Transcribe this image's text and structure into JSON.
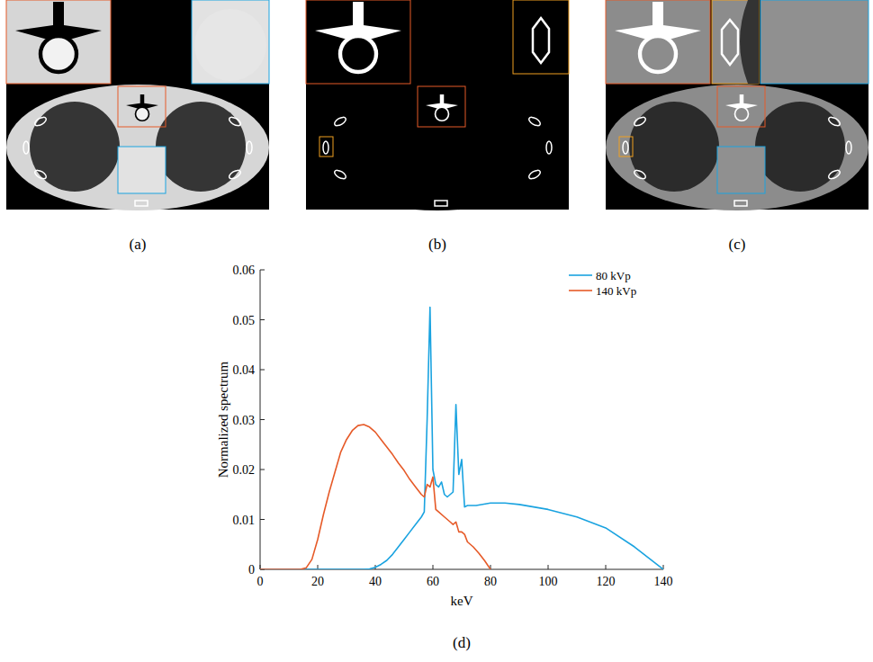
{
  "panels": [
    {
      "label": "(a)"
    },
    {
      "label": "(b)"
    },
    {
      "label": "(c)"
    }
  ],
  "chart_data": {
    "type": "line",
    "figure_label": "(d)",
    "x_label": "keV",
    "y_label": "Normalized spectrum",
    "xlim": [
      0,
      140
    ],
    "xticks": [
      0,
      20,
      40,
      60,
      80,
      100,
      120,
      140
    ],
    "ylim": [
      0,
      0.06
    ],
    "yticks": [
      0,
      0.01,
      0.02,
      0.03,
      0.04,
      0.05,
      0.06
    ],
    "grid": false,
    "legend": "upper right",
    "series": [
      {
        "name": "80 kVp",
        "color": "#1aa3e0",
        "x": [
          0,
          20,
          36,
          38,
          40,
          42,
          44,
          46,
          48,
          50,
          52,
          54,
          56,
          57,
          58,
          59,
          60,
          61,
          62,
          63,
          64,
          65,
          66,
          67,
          68,
          69,
          70,
          71,
          72,
          75,
          80,
          85,
          90,
          95,
          100,
          110,
          120,
          130,
          140
        ],
        "values": [
          0,
          0,
          0,
          0.0001,
          0.0004,
          0.001,
          0.0018,
          0.003,
          0.0045,
          0.006,
          0.0075,
          0.009,
          0.0105,
          0.0115,
          0.03,
          0.0525,
          0.02,
          0.017,
          0.0165,
          0.0175,
          0.015,
          0.0145,
          0.015,
          0.0155,
          0.033,
          0.019,
          0.022,
          0.0125,
          0.0128,
          0.0128,
          0.0133,
          0.0133,
          0.013,
          0.0125,
          0.012,
          0.0105,
          0.0083,
          0.0045,
          0
        ]
      },
      {
        "name": "140 kVp",
        "color": "#e65a28",
        "x": [
          0,
          10,
          14,
          16,
          18,
          20,
          22,
          24,
          26,
          28,
          30,
          32,
          34,
          36,
          38,
          40,
          42,
          44,
          46,
          48,
          50,
          52,
          54,
          56,
          57,
          58,
          59,
          60,
          61,
          62,
          64,
          66,
          67,
          68,
          69,
          70,
          71,
          72,
          74,
          76,
          78,
          80
        ],
        "values": [
          0,
          0,
          0,
          0.0003,
          0.002,
          0.006,
          0.011,
          0.0155,
          0.0195,
          0.0235,
          0.026,
          0.0278,
          0.0288,
          0.029,
          0.0285,
          0.0275,
          0.026,
          0.0245,
          0.023,
          0.0213,
          0.0198,
          0.018,
          0.0165,
          0.015,
          0.0145,
          0.017,
          0.0165,
          0.0185,
          0.012,
          0.0115,
          0.0105,
          0.0095,
          0.009,
          0.0095,
          0.0075,
          0.0075,
          0.007,
          0.0055,
          0.0045,
          0.0032,
          0.0017,
          0
        ]
      }
    ]
  }
}
